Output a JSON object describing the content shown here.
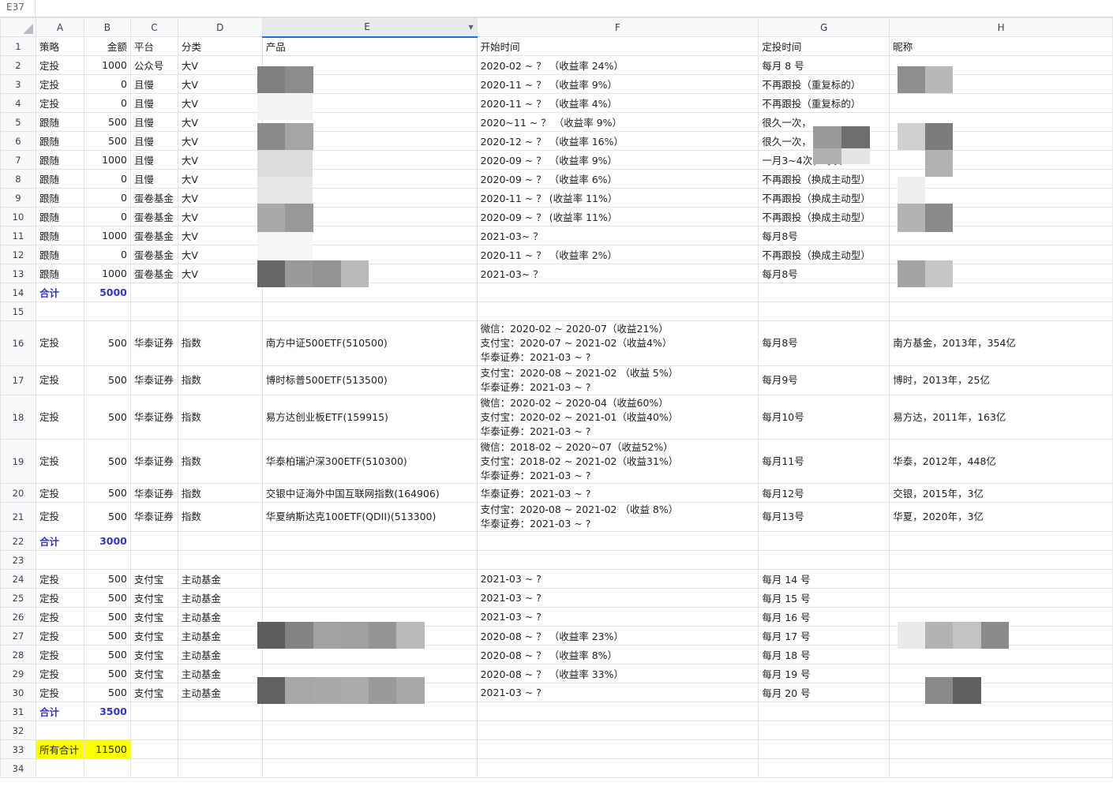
{
  "name_box": "E37",
  "columns": [
    "A",
    "B",
    "C",
    "D",
    "E",
    "F",
    "G",
    "H"
  ],
  "rows": [
    {
      "n": "1",
      "c": [
        "策略",
        "金额",
        "平台",
        "分类",
        "产品",
        "开始时间",
        "定投时间",
        "昵称"
      ]
    },
    {
      "n": "2",
      "c": [
        "定投",
        "1000",
        "公众号",
        "大V",
        "",
        "2020-02 ~ ？  （收益率 24%）",
        "每月 8 号",
        ""
      ]
    },
    {
      "n": "3",
      "c": [
        "定投",
        "0",
        "且慢",
        "大V",
        "",
        "2020-11 ~ ？ （收益率 9%）",
        "不再跟投（重复标的）",
        ""
      ]
    },
    {
      "n": "4",
      "c": [
        "定投",
        "0",
        "且慢",
        "大V",
        "",
        "2020-11 ~ ？ （收益率 4%）",
        "不再跟投（重复标的）",
        ""
      ]
    },
    {
      "n": "5",
      "c": [
        "跟随",
        "500",
        "且慢",
        "大V",
        "",
        "2020~11 ~ ？  （收益率 9%）",
        "很久一次，",
        ""
      ]
    },
    {
      "n": "6",
      "c": [
        "跟随",
        "500",
        "且慢",
        "大V",
        "",
        "2020-12 ~ ？  （收益率 16%）",
        "很久一次，",
        ""
      ]
    },
    {
      "n": "7",
      "c": [
        "跟随",
        "1000",
        "且慢",
        "大V",
        "",
        "2020-09 ~ ？  （收益率 9%）",
        "一月3~4次，每次300",
        ""
      ]
    },
    {
      "n": "8",
      "c": [
        "跟随",
        "0",
        "且慢",
        "大V",
        "",
        "2020-09 ~ ？  （收益率 6%）",
        "不再跟投（换成主动型）",
        ""
      ]
    },
    {
      "n": "9",
      "c": [
        "跟随",
        "0",
        "蛋卷基金",
        "大V",
        "",
        "2020-11 ~ ？  (收益率 11%）",
        "不再跟投（换成主动型）",
        ""
      ]
    },
    {
      "n": "10",
      "c": [
        "跟随",
        "0",
        "蛋卷基金",
        "大V",
        "",
        "2020-09 ~ ？  (收益率 11%）",
        "不再跟投（换成主动型）",
        ""
      ]
    },
    {
      "n": "11",
      "c": [
        "跟随",
        "1000",
        "蛋卷基金",
        "大V",
        "",
        "2021-03~ ？",
        "每月8号",
        ""
      ]
    },
    {
      "n": "12",
      "c": [
        "跟随",
        "0",
        "蛋卷基金",
        "大V",
        "",
        "2020-11 ~ ？  （收益率 2%）",
        "不再跟投（换成主动型）",
        ""
      ]
    },
    {
      "n": "13",
      "c": [
        "跟随",
        "1000",
        "蛋卷基金",
        "大V",
        "",
        "2021-03~ ？",
        "每月8号",
        ""
      ]
    },
    {
      "n": "14",
      "c": [
        "合计",
        "5000",
        "",
        "",
        "",
        "",
        "",
        ""
      ],
      "total": true
    },
    {
      "n": "15",
      "c": [
        "",
        "",
        "",
        "",
        "",
        "",
        "",
        ""
      ]
    },
    {
      "n": "16",
      "c": [
        "定投",
        "500",
        "华泰证券",
        "指数",
        "南方中证500ETF(510500)",
        "微信：2020-02 ~ 2020-07（收益21%）\n支付宝：2020-07 ~ 2021-02（收益4%）\n华泰证券：2021-03 ~ ?",
        "每月8号",
        "南方基金，2013年，354亿"
      ],
      "h": 57
    },
    {
      "n": "17",
      "c": [
        "定投",
        "500",
        "华泰证券",
        "指数",
        "博时标普500ETF(513500)",
        "支付宝：2020-08 ~ 2021-02 （收益 5%）\n华泰证券：2021-03 ~ ?",
        "每月9号",
        "博时，2013年，25亿"
      ],
      "h": 37
    },
    {
      "n": "18",
      "c": [
        "定投",
        "500",
        "华泰证券",
        "指数",
        "易方达创业板ETF(159915)",
        "微信：2020-02 ~ 2020-04（收益60%）\n支付宝：2020-02 ~ 2021-01（收益40%）\n华泰证券：2021-03 ~ ?",
        "每月10号",
        "易方达，2011年，163亿"
      ],
      "h": 56
    },
    {
      "n": "19",
      "c": [
        "定投",
        "500",
        "华泰证券",
        "指数",
        "华泰柏瑞沪深300ETF(510300)",
        "微信：2018-02 ~ 2020~07（收益52%）\n支付宝：2018-02 ~ 2021-02（收益31%）\n华泰证券：2021-03 ~ ?",
        "每月11号",
        "华泰，2012年，448亿"
      ],
      "h": 56
    },
    {
      "n": "20",
      "c": [
        "定投",
        "500",
        "华泰证券",
        "指数",
        "交银中证海外中国互联网指数(164906)",
        "华泰证券：2021-03 ~ ?",
        "每月12号",
        "交银，2015年，3亿"
      ]
    },
    {
      "n": "21",
      "c": [
        "定投",
        "500",
        "华泰证券",
        "指数",
        "华夏纳斯达克100ETF(QDII)(513300)",
        "支付宝：2020-08 ~ 2021-02 （收益 8%）\n华泰证券：2021-03 ~ ?",
        "每月13号",
        "华夏，2020年，3亿"
      ],
      "h": 37
    },
    {
      "n": "22",
      "c": [
        "合计",
        "3000",
        "",
        "",
        "",
        "",
        "",
        ""
      ],
      "total": true
    },
    {
      "n": "23",
      "c": [
        "",
        "",
        "",
        "",
        "",
        "",
        "",
        ""
      ]
    },
    {
      "n": "24",
      "c": [
        "定投",
        "500",
        "支付宝",
        "主动基金",
        "",
        "2021-03 ~ ?",
        "每月 14 号",
        ""
      ]
    },
    {
      "n": "25",
      "c": [
        "定投",
        "500",
        "支付宝",
        "主动基金",
        "",
        "2021-03 ~ ?",
        "每月 15 号",
        ""
      ]
    },
    {
      "n": "26",
      "c": [
        "定投",
        "500",
        "支付宝",
        "主动基金",
        "",
        "2021-03 ~ ?",
        "每月 16 号",
        ""
      ]
    },
    {
      "n": "27",
      "c": [
        "定投",
        "500",
        "支付宝",
        "主动基金",
        "",
        "2020-08 ~ ？  （收益率 23%）",
        "每月 17 号",
        ""
      ]
    },
    {
      "n": "28",
      "c": [
        "定投",
        "500",
        "支付宝",
        "主动基金",
        "",
        "2020-08 ~ ？  （收益率 8%）",
        "每月 18 号",
        ""
      ]
    },
    {
      "n": "29",
      "c": [
        "定投",
        "500",
        "支付宝",
        "主动基金",
        "",
        "2020-08 ~ ？  （收益率 33%）",
        "每月 19 号",
        ""
      ]
    },
    {
      "n": "30",
      "c": [
        "定投",
        "500",
        "支付宝",
        "主动基金",
        "",
        "2021-03 ~ ?",
        "每月 20 号",
        ""
      ]
    },
    {
      "n": "31",
      "c": [
        "合计",
        "3500",
        "",
        "",
        "",
        "",
        "",
        ""
      ],
      "total": true
    },
    {
      "n": "32",
      "c": [
        "",
        "",
        "",
        "",
        "",
        "",
        "",
        ""
      ]
    },
    {
      "n": "33",
      "c": [
        "所有合计",
        "11500",
        "",
        "",
        "",
        "",
        "",
        ""
      ],
      "grand": true
    },
    {
      "n": "34",
      "c": [
        "",
        "",
        "",
        "",
        "",
        "",
        "",
        ""
      ]
    }
  ]
}
